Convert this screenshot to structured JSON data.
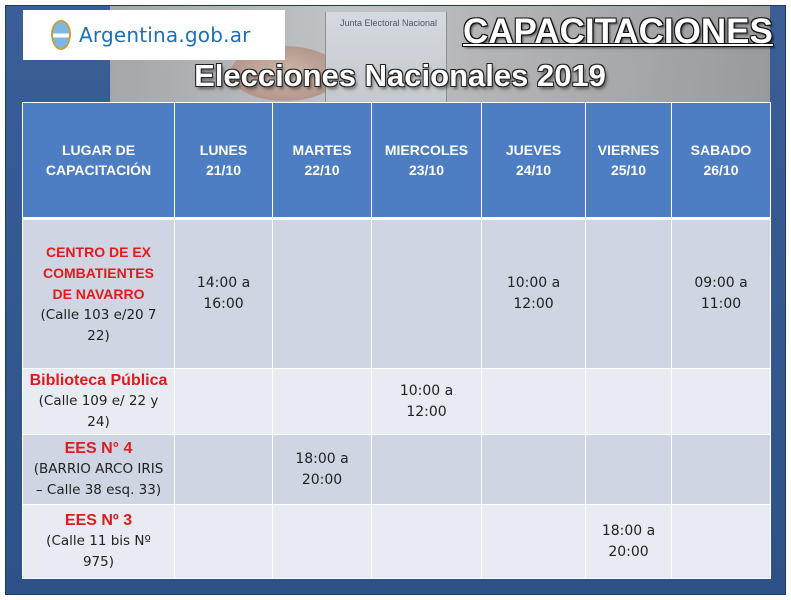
{
  "header": {
    "logo_text": "Argentina.gob.ar",
    "title": "CAPACITACIONES",
    "subtitle": "Elecciones Nacionales 2019",
    "photo_box_text": "Junta Electoral Nacional"
  },
  "table": {
    "columns": [
      {
        "line1": "LUGAR DE",
        "line2": "CAPACITACIÓN"
      },
      {
        "line1": "LUNES",
        "line2": "21/10"
      },
      {
        "line1": "MARTES",
        "line2": "22/10"
      },
      {
        "line1": "MIERCOLES",
        "line2": "23/10"
      },
      {
        "line1": "JUEVES",
        "line2": "24/10"
      },
      {
        "line1": "VIERNES",
        "line2": "25/10"
      },
      {
        "line1": "SABADO",
        "line2": "26/10"
      }
    ],
    "rows": [
      {
        "venue_name": "CENTRO DE EX COMBATIENTES DE NAVARRO",
        "venue_address": "(Calle 103 e/20 7 22)",
        "cells": [
          {
            "line1": "14:00 a",
            "line2": "16:00"
          },
          {
            "line1": "",
            "line2": ""
          },
          {
            "line1": "",
            "line2": ""
          },
          {
            "line1": "10:00 a",
            "line2": "12:00"
          },
          {
            "line1": "",
            "line2": ""
          },
          {
            "line1": "09:00 a",
            "line2": "11:00"
          }
        ]
      },
      {
        "venue_name": "Biblioteca Pública",
        "venue_address": "(Calle 109 e/ 22 y 24)",
        "cells": [
          {
            "line1": "",
            "line2": ""
          },
          {
            "line1": "",
            "line2": ""
          },
          {
            "line1": "10:00 a",
            "line2": "12:00"
          },
          {
            "line1": "",
            "line2": ""
          },
          {
            "line1": "",
            "line2": ""
          },
          {
            "line1": "",
            "line2": ""
          }
        ]
      },
      {
        "venue_name": "EES N° 4",
        "venue_address": "(BARRIO ARCO IRIS – Calle 38 esq. 33)",
        "cells": [
          {
            "line1": "",
            "line2": ""
          },
          {
            "line1": "18:00 a",
            "line2": "20:00"
          },
          {
            "line1": "",
            "line2": ""
          },
          {
            "line1": "",
            "line2": ""
          },
          {
            "line1": "",
            "line2": ""
          },
          {
            "line1": "",
            "line2": ""
          }
        ]
      },
      {
        "venue_name": "EES Nº 3",
        "venue_address": "(Calle 11 bis Nº 975)",
        "cells": [
          {
            "line1": "",
            "line2": ""
          },
          {
            "line1": "",
            "line2": ""
          },
          {
            "line1": "",
            "line2": ""
          },
          {
            "line1": "",
            "line2": ""
          },
          {
            "line1": "18:00 a",
            "line2": "20:00"
          },
          {
            "line1": "",
            "line2": ""
          }
        ]
      }
    ]
  },
  "colors": {
    "frame_blue": "#2d5288",
    "header_blue": "#4d7dc3",
    "venue_red": "#e01b1b",
    "row_dark": "#cfd5e3",
    "row_light": "#e8ebf2"
  }
}
